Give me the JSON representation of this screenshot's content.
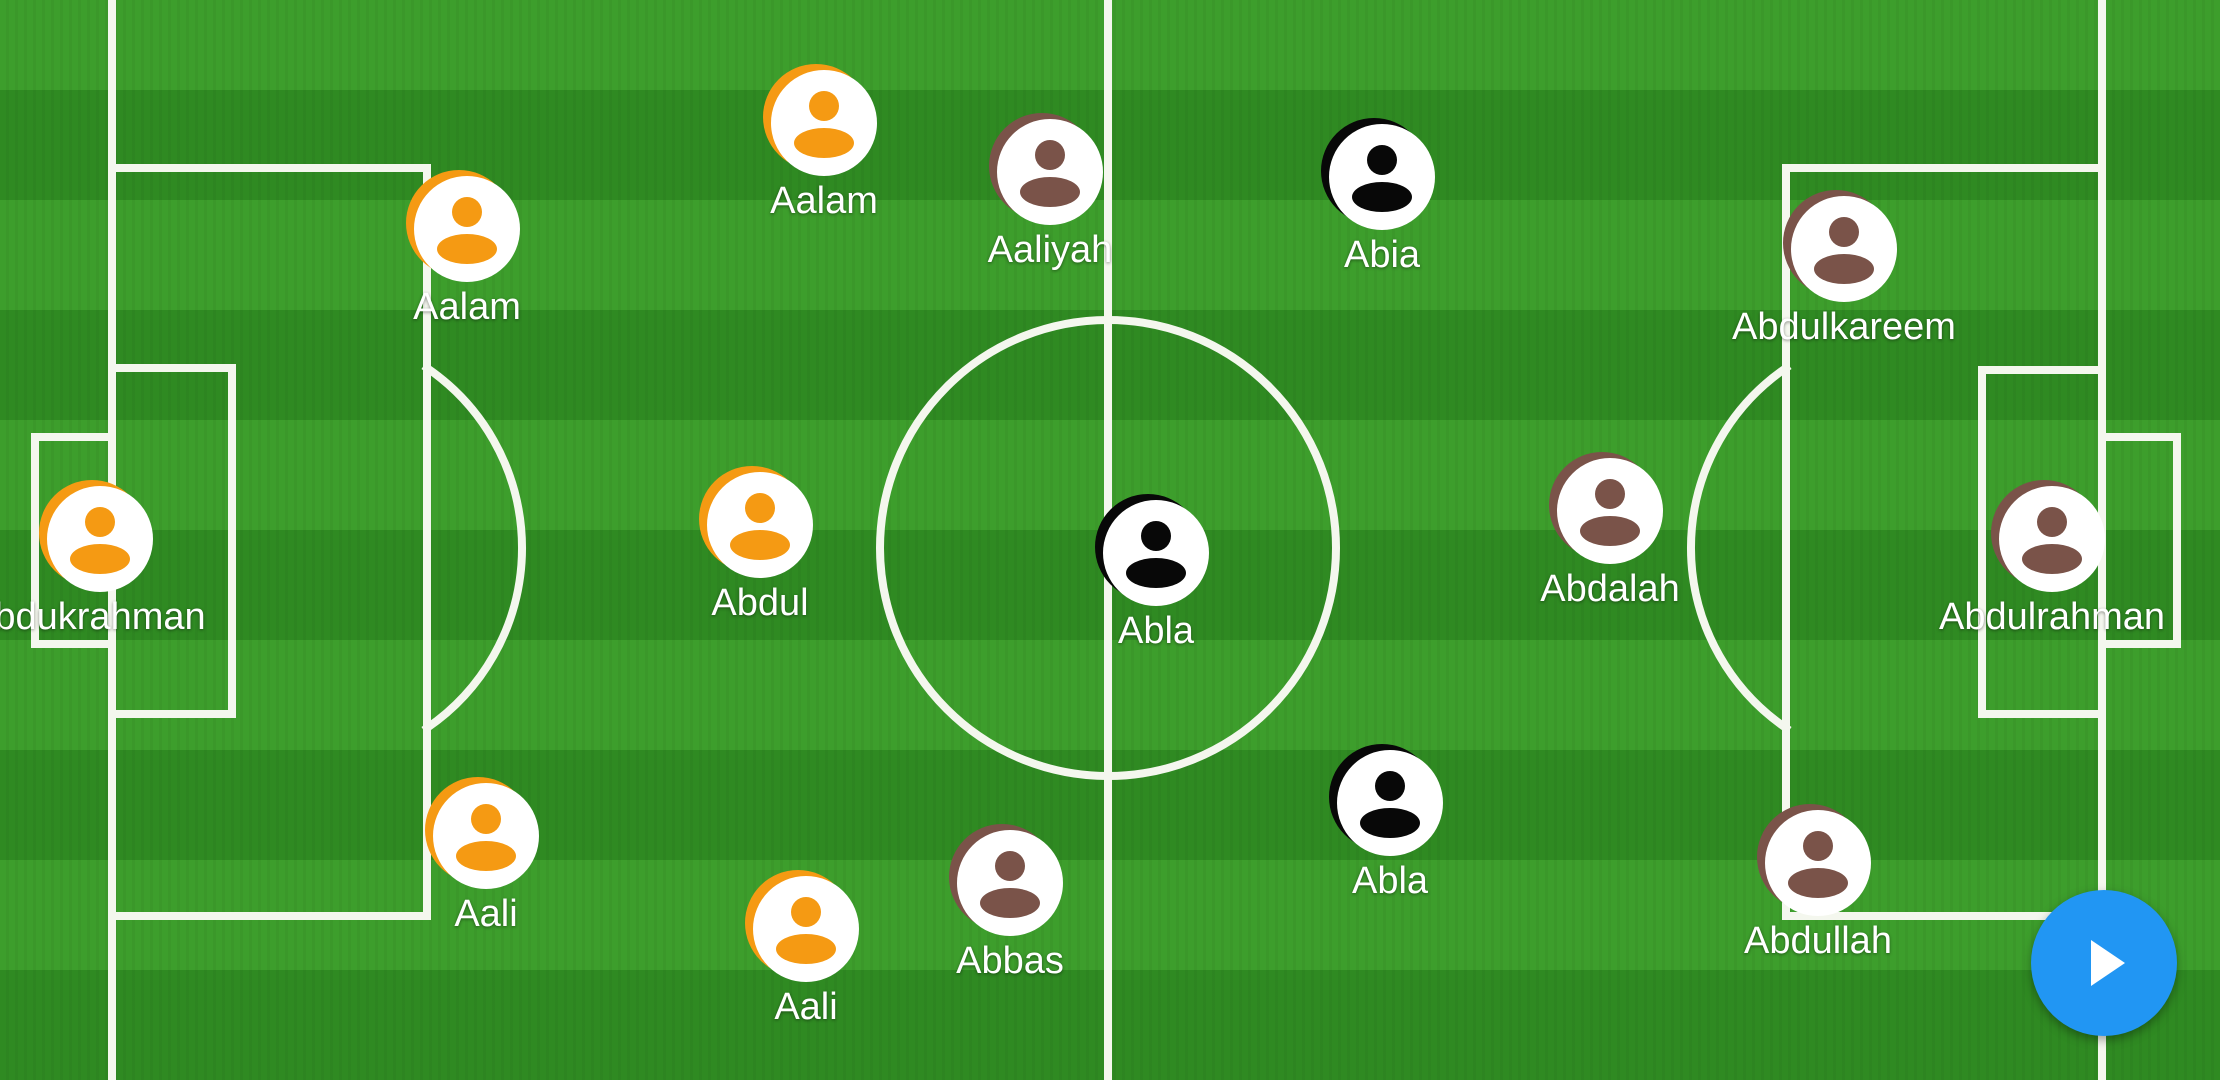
{
  "colors": {
    "home": "#f59a13",
    "away": "#7a5349",
    "neutral": "#080808",
    "accent": "#2196f3"
  },
  "home_team": [
    {
      "id": "home-gk",
      "name": "bdukrahman",
      "team": "orange"
    },
    {
      "id": "home-d1",
      "name": "Aalam",
      "team": "orange"
    },
    {
      "id": "home-d2",
      "name": "Aali",
      "team": "orange"
    },
    {
      "id": "home-m1",
      "name": "Aalam",
      "team": "orange"
    },
    {
      "id": "home-m2",
      "name": "Abdul",
      "team": "orange"
    },
    {
      "id": "home-m3",
      "name": "Aali",
      "team": "orange"
    }
  ],
  "away_team": [
    {
      "id": "away-f1",
      "name": "Aaliyah",
      "team": "brown"
    },
    {
      "id": "away-f2",
      "name": "Abbas",
      "team": "brown"
    },
    {
      "id": "away-m1",
      "name": "Abdalah",
      "team": "brown"
    },
    {
      "id": "away-d1",
      "name": "Abdulkareem",
      "team": "brown"
    },
    {
      "id": "away-d2",
      "name": "Abdullah",
      "team": "brown"
    },
    {
      "id": "away-gk",
      "name": "Abdulrahman",
      "team": "brown"
    }
  ],
  "neutral_players": [
    {
      "id": "n-1",
      "name": "Abla",
      "team": "black"
    },
    {
      "id": "n-2",
      "name": "Abia",
      "team": "black"
    },
    {
      "id": "n-3",
      "name": "Abla",
      "team": "black"
    }
  ],
  "play_button": {
    "icon": "play-icon"
  }
}
